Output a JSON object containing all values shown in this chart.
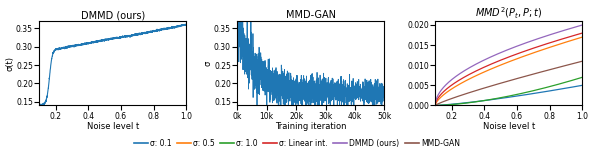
{
  "panel1_title": "DMMD (ours)",
  "panel1_xlabel": "Noise level t",
  "panel1_ylabel": "σ(t)",
  "panel2_title": "MMD-GAN",
  "panel2_xlabel": "Training iteration",
  "panel2_ylabel": "σ",
  "panel3_title": "MMD$^2$($P_t$, $P$; $t$)",
  "panel3_xlabel": "Noise level t",
  "panel3_ylabel": "",
  "legend_entries": [
    "σ: 0.1",
    "σ: 0.5",
    "σ: 1.0",
    "σ: Linear int.",
    "DMMD (ours)",
    "MMD-GAN"
  ],
  "legend_colors": [
    "#1f77b4",
    "#ff7f0e",
    "#2ca02c",
    "#d62728",
    "#9467bd",
    "#8c564b"
  ],
  "panel1_xlim": [
    0.1,
    1.0
  ],
  "panel1_ylim": [
    0.14,
    0.37
  ],
  "panel2_xlim": [
    0,
    50000
  ],
  "panel2_ylim": [
    0.14,
    0.37
  ],
  "panel3_xlim": [
    0.1,
    1.0
  ],
  "panel3_ylim": [
    0.0,
    0.021
  ]
}
